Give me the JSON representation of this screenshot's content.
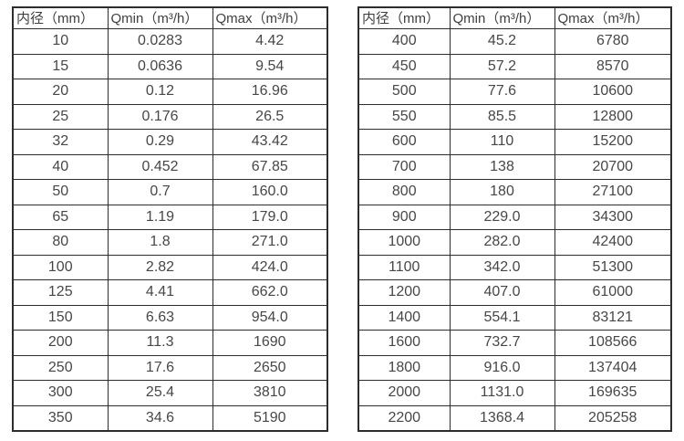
{
  "page": {
    "background": "#ffffff",
    "border_color": "#2d2d2d",
    "header_text_color": "#3f3f3f",
    "cell_text_color": "#474747"
  },
  "tables": [
    {
      "name": "flow-table-left",
      "headers": [
        "内径（mm）",
        "Qmin（m³/h）",
        "Qmax（m³/h）"
      ],
      "rows": [
        [
          "10",
          "0.0283",
          "4.42"
        ],
        [
          "15",
          "0.0636",
          "9.54"
        ],
        [
          "20",
          "0.12",
          "16.96"
        ],
        [
          "25",
          "0.176",
          "26.5"
        ],
        [
          "32",
          "0.29",
          "43.42"
        ],
        [
          "40",
          "0.452",
          "67.85"
        ],
        [
          "50",
          "0.7",
          "160.0"
        ],
        [
          "65",
          "1.19",
          "179.0"
        ],
        [
          "80",
          "1.8",
          "271.0"
        ],
        [
          "100",
          "2.82",
          "424.0"
        ],
        [
          "125",
          "4.41",
          "662.0"
        ],
        [
          "150",
          "6.63",
          "954.0"
        ],
        [
          "200",
          "11.3",
          "1690"
        ],
        [
          "250",
          "17.6",
          "2650"
        ],
        [
          "300",
          "25.4",
          "3810"
        ],
        [
          "350",
          "34.6",
          "5190"
        ]
      ]
    },
    {
      "name": "flow-table-right",
      "headers": [
        "内径（mm）",
        "Qmin（m³/h）",
        "Qmax（m³/h）"
      ],
      "rows": [
        [
          "400",
          "45.2",
          "6780"
        ],
        [
          "450",
          "57.2",
          "8570"
        ],
        [
          "500",
          "77.6",
          "10600"
        ],
        [
          "550",
          "85.5",
          "12800"
        ],
        [
          "600",
          "110",
          "15200"
        ],
        [
          "700",
          "138",
          "20700"
        ],
        [
          "800",
          "180",
          "27100"
        ],
        [
          "900",
          "229.0",
          "34300"
        ],
        [
          "1000",
          "282.0",
          "42400"
        ],
        [
          "1100",
          "342.0",
          "51300"
        ],
        [
          "1200",
          "407.0",
          "61000"
        ],
        [
          "1400",
          "554.1",
          "83121"
        ],
        [
          "1600",
          "732.7",
          "108566"
        ],
        [
          "1800",
          "916.0",
          "137404"
        ],
        [
          "2000",
          "1131.0",
          "169635"
        ],
        [
          "2200",
          "1368.4",
          "205258"
        ]
      ]
    }
  ]
}
